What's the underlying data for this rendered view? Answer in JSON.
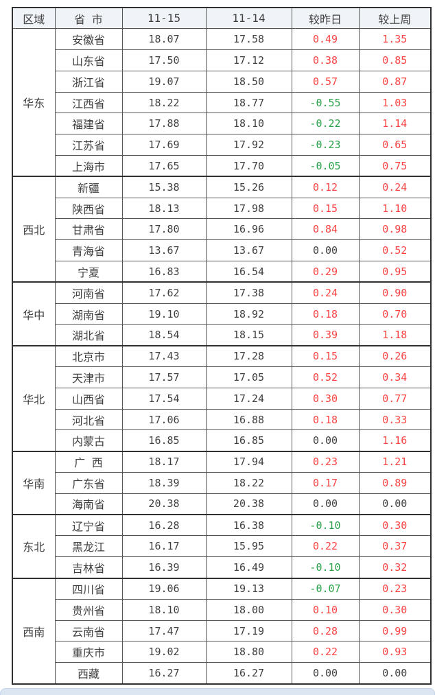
{
  "theme": {
    "positive_color": "#fc4343",
    "negative_color": "#2aa148",
    "zero_color": "#404040",
    "header_bg": "#f0f4f9",
    "grid_color": "#565656",
    "heavy_border_color": "#303030",
    "footer_bar_color": "#dce6f3"
  },
  "chart_data": {
    "type": "table",
    "columns": [
      "区域",
      "省 市",
      "11-15",
      "11-14",
      "较昨日",
      "较上周"
    ],
    "value_precision": 2,
    "color_rule": "positive=red, negative=green, zero=black (applies to 较昨日 and 较上周 columns)",
    "regions": [
      {
        "name": "华东",
        "rows": [
          {
            "province": "安徽省",
            "nov15": 18.07,
            "nov14": 17.58,
            "vs_yesterday": 0.49,
            "vs_last_week": 1.35
          },
          {
            "province": "山东省",
            "nov15": 17.5,
            "nov14": 17.12,
            "vs_yesterday": 0.38,
            "vs_last_week": 0.85
          },
          {
            "province": "浙江省",
            "nov15": 19.07,
            "nov14": 18.5,
            "vs_yesterday": 0.57,
            "vs_last_week": 0.87
          },
          {
            "province": "江西省",
            "nov15": 18.22,
            "nov14": 18.77,
            "vs_yesterday": -0.55,
            "vs_last_week": 1.03
          },
          {
            "province": "福建省",
            "nov15": 17.88,
            "nov14": 18.1,
            "vs_yesterday": -0.22,
            "vs_last_week": 1.14
          },
          {
            "province": "江苏省",
            "nov15": 17.69,
            "nov14": 17.92,
            "vs_yesterday": -0.23,
            "vs_last_week": 0.65
          },
          {
            "province": "上海市",
            "nov15": 17.65,
            "nov14": 17.7,
            "vs_yesterday": -0.05,
            "vs_last_week": 0.75
          }
        ]
      },
      {
        "name": "西北",
        "rows": [
          {
            "province": "新疆",
            "nov15": 15.38,
            "nov14": 15.26,
            "vs_yesterday": 0.12,
            "vs_last_week": 0.24
          },
          {
            "province": "陕西省",
            "nov15": 18.13,
            "nov14": 17.98,
            "vs_yesterday": 0.15,
            "vs_last_week": 1.1
          },
          {
            "province": "甘肃省",
            "nov15": 17.8,
            "nov14": 16.96,
            "vs_yesterday": 0.84,
            "vs_last_week": 0.98
          },
          {
            "province": "青海省",
            "nov15": 13.67,
            "nov14": 13.67,
            "vs_yesterday": 0.0,
            "vs_last_week": 0.52
          },
          {
            "province": "宁夏",
            "nov15": 16.83,
            "nov14": 16.54,
            "vs_yesterday": 0.29,
            "vs_last_week": 0.95
          }
        ]
      },
      {
        "name": "华中",
        "rows": [
          {
            "province": "河南省",
            "nov15": 17.62,
            "nov14": 17.38,
            "vs_yesterday": 0.24,
            "vs_last_week": 0.9
          },
          {
            "province": "湖南省",
            "nov15": 19.1,
            "nov14": 18.92,
            "vs_yesterday": 0.18,
            "vs_last_week": 0.7
          },
          {
            "province": "湖北省",
            "nov15": 18.54,
            "nov14": 18.15,
            "vs_yesterday": 0.39,
            "vs_last_week": 1.18
          }
        ]
      },
      {
        "name": "华北",
        "rows": [
          {
            "province": "北京市",
            "nov15": 17.43,
            "nov14": 17.28,
            "vs_yesterday": 0.15,
            "vs_last_week": 0.26
          },
          {
            "province": "天津市",
            "nov15": 17.57,
            "nov14": 17.05,
            "vs_yesterday": 0.52,
            "vs_last_week": 0.34
          },
          {
            "province": "山西省",
            "nov15": 17.54,
            "nov14": 17.24,
            "vs_yesterday": 0.3,
            "vs_last_week": 0.77
          },
          {
            "province": "河北省",
            "nov15": 17.06,
            "nov14": 16.88,
            "vs_yesterday": 0.18,
            "vs_last_week": 0.33
          },
          {
            "province": "内蒙古",
            "nov15": 16.85,
            "nov14": 16.85,
            "vs_yesterday": 0.0,
            "vs_last_week": 1.16
          }
        ]
      },
      {
        "name": "华南",
        "rows": [
          {
            "province": "广 西",
            "nov15": 18.17,
            "nov14": 17.94,
            "vs_yesterday": 0.23,
            "vs_last_week": 1.21
          },
          {
            "province": "广东省",
            "nov15": 18.39,
            "nov14": 18.22,
            "vs_yesterday": 0.17,
            "vs_last_week": 0.89
          },
          {
            "province": "海南省",
            "nov15": 20.38,
            "nov14": 20.38,
            "vs_yesterday": 0.0,
            "vs_last_week": 0.0
          }
        ]
      },
      {
        "name": "东北",
        "rows": [
          {
            "province": "辽宁省",
            "nov15": 16.28,
            "nov14": 16.38,
            "vs_yesterday": -0.1,
            "vs_last_week": 0.3
          },
          {
            "province": "黑龙江",
            "nov15": 16.17,
            "nov14": 15.95,
            "vs_yesterday": 0.22,
            "vs_last_week": 0.37
          },
          {
            "province": "吉林省",
            "nov15": 16.39,
            "nov14": 16.49,
            "vs_yesterday": -0.1,
            "vs_last_week": 0.32
          }
        ]
      },
      {
        "name": "西南",
        "rows": [
          {
            "province": "四川省",
            "nov15": 19.06,
            "nov14": 19.13,
            "vs_yesterday": -0.07,
            "vs_last_week": 0.23
          },
          {
            "province": "贵州省",
            "nov15": 18.1,
            "nov14": 18.0,
            "vs_yesterday": 0.1,
            "vs_last_week": 0.3
          },
          {
            "province": "云南省",
            "nov15": 17.47,
            "nov14": 17.19,
            "vs_yesterday": 0.28,
            "vs_last_week": 0.99
          },
          {
            "province": "重庆市",
            "nov15": 19.02,
            "nov14": 18.8,
            "vs_yesterday": 0.22,
            "vs_last_week": 0.93
          },
          {
            "province": "西藏",
            "nov15": 16.27,
            "nov14": 16.27,
            "vs_yesterday": 0.0,
            "vs_last_week": 0.0
          }
        ]
      }
    ]
  }
}
